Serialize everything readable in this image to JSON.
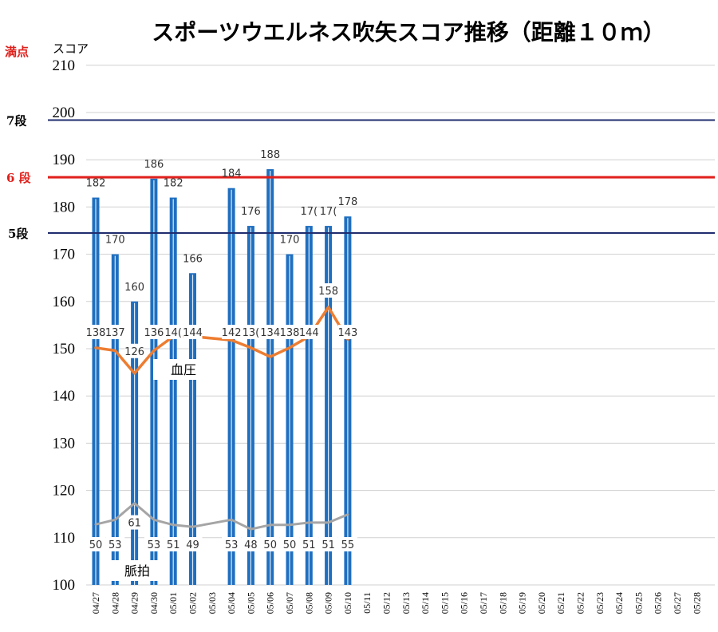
{
  "chart_data": {
    "type": "bar",
    "title": "スポーツウエルネス吹矢スコア推移（距離１０ｍ）",
    "ylabel": "スコア",
    "max_label": "満点",
    "ylim": [
      100,
      210
    ],
    "yticks": [
      100,
      110,
      120,
      130,
      140,
      150,
      160,
      170,
      180,
      190,
      200,
      210
    ],
    "grid": true,
    "categories": [
      "04/27",
      "04/28",
      "04/29",
      "04/30",
      "05/01",
      "05/02",
      "05/03",
      "05/04",
      "05/05",
      "05/06",
      "05/07",
      "05/08",
      "05/09",
      "05/10",
      "05/11",
      "05/12",
      "05/13",
      "05/14",
      "05/15",
      "05/16",
      "05/17",
      "05/18",
      "05/19",
      "05/20",
      "05/21",
      "05/22",
      "05/23",
      "05/24",
      "05/25",
      "05/26",
      "05/27",
      "05/28"
    ],
    "series": [
      {
        "type": "bar",
        "color": "#1f6fc0",
        "values": [
          182,
          170,
          160,
          186,
          182,
          166,
          null,
          184,
          176,
          188,
          170,
          176,
          176,
          178,
          null,
          null,
          null,
          null,
          null,
          null,
          null,
          null,
          null,
          null,
          null,
          null,
          null,
          null,
          null,
          null,
          null,
          null
        ],
        "labels": [
          "182",
          "170",
          "160",
          "186",
          "182",
          "166",
          "",
          "184",
          "176",
          "188",
          "170",
          "17(",
          "17(",
          "178",
          "",
          "",
          "",
          "",
          "",
          "",
          "",
          "",
          "",
          "",
          "",
          "",
          "",
          "",
          "",
          "",
          "",
          ""
        ]
      },
      {
        "type": "line",
        "name": "血圧",
        "color": "#ed7d31",
        "plot_y": [
          150.2,
          149.6,
          144.8,
          149.6,
          152.6,
          152.6,
          null,
          151.8,
          150.2,
          148.3,
          150.2,
          152.6,
          158.8,
          152.0,
          null,
          null,
          null,
          null,
          null,
          null,
          null,
          null,
          null,
          null,
          null,
          null,
          null,
          null,
          null,
          null,
          null,
          null
        ],
        "labels": [
          "138",
          "137",
          "126",
          "136",
          "14(",
          "144",
          "",
          "142",
          "13(",
          "134",
          "138",
          "144",
          "158",
          "143",
          "",
          "",
          "",
          "",
          "",
          "",
          "",
          "",
          "",
          "",
          "",
          "",
          "",
          "",
          "",
          "",
          "",
          ""
        ]
      },
      {
        "type": "line",
        "name": "脈拍",
        "color": "#a5a5a5",
        "plot_y": [
          112.8,
          113.8,
          117.3,
          113.8,
          112.7,
          112.3,
          null,
          113.8,
          111.8,
          112.7,
          112.7,
          113.2,
          113.2,
          114.9,
          null,
          null,
          null,
          null,
          null,
          null,
          null,
          null,
          null,
          null,
          null,
          null,
          null,
          null,
          null,
          null,
          null,
          null
        ],
        "labels": [
          "50",
          "53",
          "61",
          "53",
          "51",
          "49",
          "",
          "53",
          "48",
          "50",
          "50",
          "51",
          "51",
          "55",
          "",
          "",
          "",
          "",
          "",
          "",
          "",
          "",
          "",
          "",
          "",
          "",
          "",
          "",
          "",
          "",
          "",
          ""
        ]
      }
    ],
    "reference_lines": [
      {
        "label": "7段",
        "value": 198.4,
        "color": "#1f2d6e",
        "label_color": "#000000"
      },
      {
        "label": "6 段",
        "value": 186.3,
        "color": "#e0201b",
        "label_color": "#e0201b"
      },
      {
        "label": "5段",
        "value": 174.5,
        "color": "#1f2d6e",
        "label_color": "#000000"
      }
    ],
    "colors": {
      "max_label": "#e0201b",
      "grid": "#d0d0d0"
    }
  }
}
